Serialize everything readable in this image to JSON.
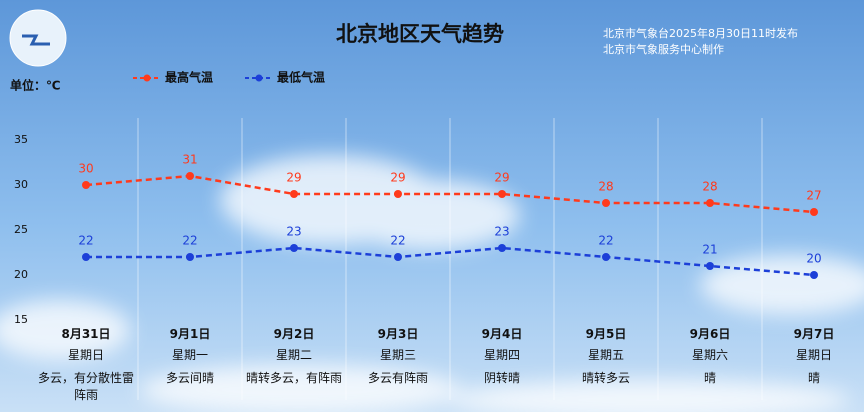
{
  "chart_data": {
    "type": "line",
    "title": "北京地区天气趋势",
    "subtitle": [
      "北京市气象台2025年8月30日11时发布",
      "北京市气象服务中心制作"
    ],
    "unit_label": "单位：℃",
    "categories": [
      "8月31日",
      "9月1日",
      "9月2日",
      "9月3日",
      "9月4日",
      "9月5日",
      "9月6日",
      "9月7日"
    ],
    "weekdays": [
      "星期日",
      "星期一",
      "星期二",
      "星期三",
      "星期四",
      "星期五",
      "星期六",
      "星期日"
    ],
    "weather": [
      "多云，有分散性雷阵雨",
      "多云间晴",
      "晴转多云，有阵雨",
      "多云有阵雨",
      "阴转晴",
      "晴转多云",
      "晴",
      "晴"
    ],
    "series": [
      {
        "name": "最高气温",
        "color": "#ff3a1c",
        "values": [
          30,
          31,
          29,
          29,
          29,
          28,
          28,
          27
        ]
      },
      {
        "name": "最低气温",
        "color": "#1c3fd8",
        "values": [
          22,
          22,
          23,
          22,
          23,
          22,
          21,
          20
        ]
      }
    ],
    "ylim": [
      15,
      35
    ],
    "yticks": [
      15,
      20,
      25,
      30,
      35
    ]
  }
}
